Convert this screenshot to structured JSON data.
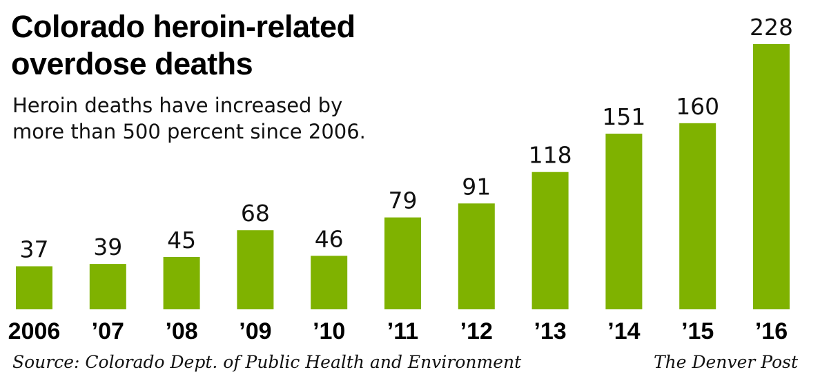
{
  "chart_data": {
    "type": "bar",
    "title": "Colorado heroin-related overdose deaths",
    "subtitle": "Heroin deaths have increased by more than 500 percent since 2006.",
    "categories": [
      "2006",
      "’07",
      "’08",
      "’09",
      "’10",
      "’11",
      "’12",
      "’13",
      "’14",
      "’15",
      "’16"
    ],
    "values": [
      37,
      39,
      45,
      68,
      46,
      79,
      91,
      118,
      151,
      160,
      228
    ],
    "xlabel": "",
    "ylabel": "",
    "ylim": [
      0,
      228
    ],
    "grid": false,
    "legend": "none",
    "bar_color": "#7fb200",
    "data_labels": true
  },
  "footer": {
    "source": "Source: Colorado Dept. of Public Health and Environment",
    "credit": "The Denver Post"
  }
}
